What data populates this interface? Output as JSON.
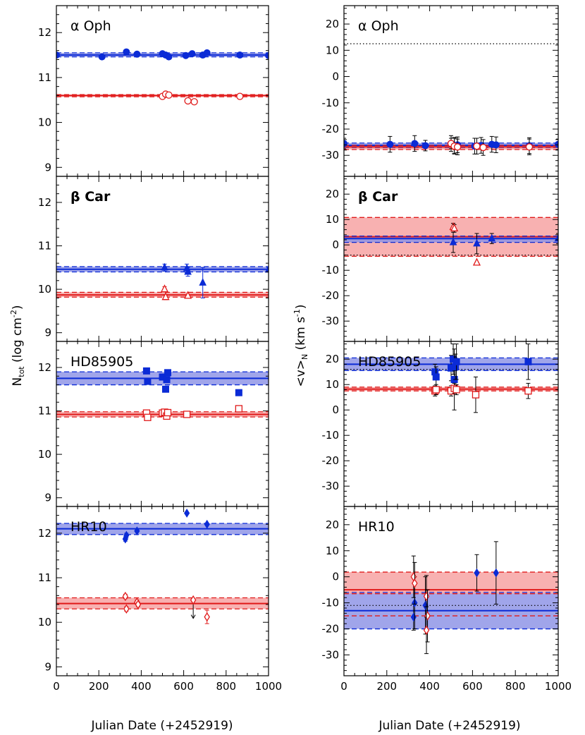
{
  "figure": {
    "x_axis_label": "Julian Date (+2452919)",
    "left_ylabel_main": "N",
    "left_ylabel_sub": "tot",
    "left_ylabel_rest": " (log cm",
    "left_ylabel_sup": "-2",
    "left_ylabel_close": ")",
    "right_ylabel_main": "<v>",
    "right_ylabel_sub": "N",
    "right_ylabel_rest": " (km s",
    "right_ylabel_sup": "-1",
    "right_ylabel_close": ")",
    "colors": {
      "blue": "#0b2bd6",
      "red": "#e01a1a",
      "blue_band": "#8f95e6",
      "red_band": "#f7a3a3"
    }
  },
  "chart_data": [
    {
      "type": "scatter",
      "panel": "left",
      "star": "α Oph",
      "xlim": [
        0,
        1000
      ],
      "ylim": [
        8.8,
        12.6
      ],
      "xticks": [
        0,
        200,
        400,
        600,
        800,
        1000
      ],
      "yticks": [
        9,
        10,
        11,
        12
      ],
      "blue_band": {
        "center": 11.5,
        "low": 11.46,
        "high": 11.55
      },
      "red_band": {
        "center": 10.6,
        "low": 10.57,
        "high": 10.62
      },
      "series": [
        {
          "name": "blue",
          "marker": "circle",
          "filled": true,
          "x": [
            0,
            215,
            330,
            380,
            500,
            515,
            530,
            610,
            640,
            690,
            710,
            865,
            1000
          ],
          "y": [
            11.5,
            11.46,
            11.57,
            11.52,
            11.53,
            11.5,
            11.46,
            11.49,
            11.53,
            11.5,
            11.55,
            11.5,
            11.49
          ]
        },
        {
          "name": "red",
          "marker": "circle",
          "filled": false,
          "x": [
            500,
            515,
            530,
            620,
            650,
            865
          ],
          "y": [
            10.58,
            10.63,
            10.61,
            10.48,
            10.46,
            10.58
          ]
        }
      ]
    },
    {
      "type": "scatter",
      "panel": "right",
      "star": "α Oph",
      "xlim": [
        0,
        1000
      ],
      "ylim": [
        -38,
        27
      ],
      "xticks": [
        0,
        200,
        400,
        600,
        800,
        1000
      ],
      "yticks": [
        -30,
        -20,
        -10,
        0,
        10,
        20
      ],
      "blue_band": {
        "center": -26.2,
        "low": -27.0,
        "high": -25.3
      },
      "red_band": {
        "center": -26.8,
        "low": -27.8,
        "high": -26.2
      },
      "dotted_line": 12.5,
      "series": [
        {
          "name": "blue",
          "marker": "circle",
          "filled": true,
          "x": [
            0,
            215,
            330,
            380,
            500,
            515,
            530,
            610,
            640,
            690,
            710,
            865,
            1000
          ],
          "y": [
            -25.5,
            -25.8,
            -25.5,
            -26.3,
            -25.5,
            -26.2,
            -26.0,
            -26.5,
            -26.2,
            -25.8,
            -26.0,
            -26.3,
            -25.8
          ],
          "err": [
            2,
            3,
            3,
            2,
            3,
            3,
            3,
            3,
            3,
            3,
            3,
            3,
            2
          ]
        },
        {
          "name": "red",
          "marker": "circle",
          "filled": false,
          "x": [
            500,
            515,
            530,
            620,
            650,
            865
          ],
          "y": [
            -25.5,
            -26.5,
            -26.8,
            -26.5,
            -27.0,
            -26.8
          ],
          "err": [
            2,
            3,
            3,
            3,
            3,
            3
          ]
        }
      ]
    },
    {
      "type": "scatter",
      "panel": "left",
      "star": "β Car",
      "xlim": [
        0,
        1000
      ],
      "ylim": [
        8.8,
        12.6
      ],
      "xticks": [
        0,
        200,
        400,
        600,
        800,
        1000
      ],
      "yticks": [
        9,
        10,
        11,
        12
      ],
      "blue_band": {
        "center": 10.46,
        "low": 10.4,
        "high": 10.52
      },
      "red_band": {
        "center": 9.87,
        "low": 9.82,
        "high": 9.93
      },
      "series": [
        {
          "name": "blue",
          "marker": "triangle",
          "filled": true,
          "x": [
            510,
            615,
            620,
            690,
            1000
          ],
          "y": [
            10.5,
            10.48,
            10.4,
            10.15,
            10.45
          ],
          "err": [
            0.08,
            0.1,
            0.1,
            0.35,
            0.05
          ]
        },
        {
          "name": "red",
          "marker": "triangle",
          "filled": false,
          "x": [
            510,
            515,
            620
          ],
          "y": [
            10.0,
            9.82,
            9.85
          ],
          "err": [
            0.06,
            0.06,
            0
          ]
        }
      ]
    },
    {
      "type": "scatter",
      "panel": "right",
      "star": "β Car",
      "xlim": [
        0,
        1000
      ],
      "ylim": [
        -38,
        27
      ],
      "xticks": [
        0,
        200,
        400,
        600,
        800,
        1000
      ],
      "yticks": [
        -30,
        -20,
        -10,
        0,
        10,
        20
      ],
      "blue_band": {
        "center": 2.5,
        "low": 1.0,
        "high": 3.5
      },
      "red_band": {
        "center": 3.2,
        "low": -4.5,
        "high": 10.8
      },
      "dotted_line": -4.0,
      "series": [
        {
          "name": "blue",
          "marker": "triangle",
          "filled": true,
          "x": [
            510,
            620,
            690,
            1000
          ],
          "y": [
            1.0,
            0.5,
            2.5,
            2.5
          ],
          "err": [
            4,
            4,
            2,
            2
          ]
        },
        {
          "name": "red",
          "marker": "triangle",
          "filled": false,
          "x": [
            510,
            515,
            620
          ],
          "y": [
            7.0,
            6.5,
            -7.0
          ],
          "err": [
            1.5,
            1.5,
            0
          ]
        }
      ]
    },
    {
      "type": "scatter",
      "panel": "left",
      "star": "HD85905",
      "xlim": [
        0,
        1000
      ],
      "ylim": [
        8.8,
        12.6
      ],
      "xticks": [
        0,
        200,
        400,
        600,
        800,
        1000
      ],
      "yticks": [
        9,
        10,
        11,
        12
      ],
      "blue_band": {
        "center": 11.75,
        "low": 11.6,
        "high": 11.9
      },
      "red_band": {
        "center": 10.92,
        "low": 10.86,
        "high": 10.98
      },
      "series": [
        {
          "name": "blue",
          "marker": "square",
          "filled": true,
          "x": [
            425,
            430,
            500,
            515,
            520,
            525,
            860
          ],
          "y": [
            11.92,
            11.68,
            11.78,
            11.5,
            11.72,
            11.88,
            11.42
          ]
        },
        {
          "name": "red",
          "marker": "square",
          "filled": false,
          "x": [
            425,
            430,
            500,
            510,
            520,
            525,
            615,
            860
          ],
          "y": [
            10.95,
            10.85,
            10.95,
            10.97,
            10.88,
            10.96,
            10.92,
            11.05
          ]
        }
      ]
    },
    {
      "type": "scatter",
      "panel": "right",
      "star": "HD85905",
      "xlim": [
        0,
        1000
      ],
      "ylim": [
        -38,
        27
      ],
      "xticks": [
        0,
        200,
        400,
        600,
        800,
        1000
      ],
      "yticks": [
        -30,
        -20,
        -10,
        0,
        10,
        20
      ],
      "blue_band": {
        "center": 18.0,
        "low": 15.5,
        "high": 20.5
      },
      "red_band": {
        "center": 8.2,
        "low": 7.5,
        "high": 9.0
      },
      "dotted_line": 16.0,
      "series": [
        {
          "name": "blue",
          "marker": "square",
          "filled": true,
          "x": [
            425,
            430,
            500,
            510,
            515,
            520,
            525,
            860
          ],
          "y": [
            15.0,
            13.0,
            16.5,
            20.0,
            12.0,
            17.0,
            19.0,
            19.0
          ],
          "err": [
            3,
            4,
            5,
            6,
            12,
            5,
            7,
            7
          ]
        },
        {
          "name": "red",
          "marker": "square",
          "filled": false,
          "x": [
            425,
            430,
            500,
            515,
            525,
            615,
            860
          ],
          "y": [
            7.5,
            8.0,
            7.5,
            8.5,
            8.0,
            6.0,
            7.5
          ],
          "err": [
            2,
            2,
            2,
            2,
            2,
            7,
            3
          ]
        }
      ]
    },
    {
      "type": "scatter",
      "panel": "left",
      "star": "HR10",
      "xlim": [
        0,
        1000
      ],
      "ylim": [
        8.8,
        12.6
      ],
      "xticks": [
        0,
        200,
        400,
        600,
        800,
        1000
      ],
      "yticks": [
        9,
        10,
        11,
        12
      ],
      "blue_band": {
        "center": 12.1,
        "low": 11.97,
        "high": 12.22
      },
      "red_band": {
        "center": 10.42,
        "low": 10.3,
        "high": 10.55
      },
      "series": [
        {
          "name": "blue",
          "marker": "diamond",
          "filled": true,
          "x": [
            325,
            330,
            380,
            615,
            710
          ],
          "y": [
            11.87,
            11.95,
            12.05,
            12.45,
            12.2
          ],
          "err": [
            0.05,
            0.05,
            0,
            0,
            0
          ]
        },
        {
          "name": "red",
          "marker": "diamond",
          "filled": false,
          "x": [
            325,
            330,
            380,
            385,
            645,
            710
          ],
          "y": [
            10.58,
            10.3,
            10.45,
            10.4,
            10.5,
            10.12
          ],
          "err": [
            0.05,
            0.05,
            0.05,
            0.05,
            0,
            0.15
          ],
          "upper_limit": [
            false,
            false,
            false,
            false,
            true,
            false
          ]
        }
      ]
    },
    {
      "type": "scatter",
      "panel": "right",
      "star": "HR10",
      "xlim": [
        0,
        1000
      ],
      "ylim": [
        -38,
        27
      ],
      "xticks": [
        0,
        200,
        400,
        600,
        800,
        1000
      ],
      "yticks": [
        -30,
        -20,
        -10,
        0,
        10,
        20
      ],
      "blue_band": {
        "center": -13.0,
        "low": -20.0,
        "high": -6.0
      },
      "red_band": {
        "center": -5.0,
        "low": -6.5,
        "high": 1.8
      },
      "dotted_line": -11.0,
      "red_dashed_extra": -15.0,
      "series": [
        {
          "name": "blue",
          "marker": "diamond",
          "filled": true,
          "x": [
            325,
            330,
            380,
            620,
            710
          ],
          "y": [
            -15.5,
            -10.0,
            -11.0,
            1.5,
            1.5
          ],
          "err": [
            5,
            10,
            11,
            7,
            12
          ]
        },
        {
          "name": "red",
          "marker": "diamond",
          "filled": false,
          "x": [
            325,
            330,
            385,
            390,
            385
          ],
          "y": [
            0.0,
            -2.5,
            -7.5,
            -15.0,
            -20.5
          ],
          "err": [
            8,
            8,
            8,
            10,
            9
          ]
        }
      ]
    }
  ]
}
